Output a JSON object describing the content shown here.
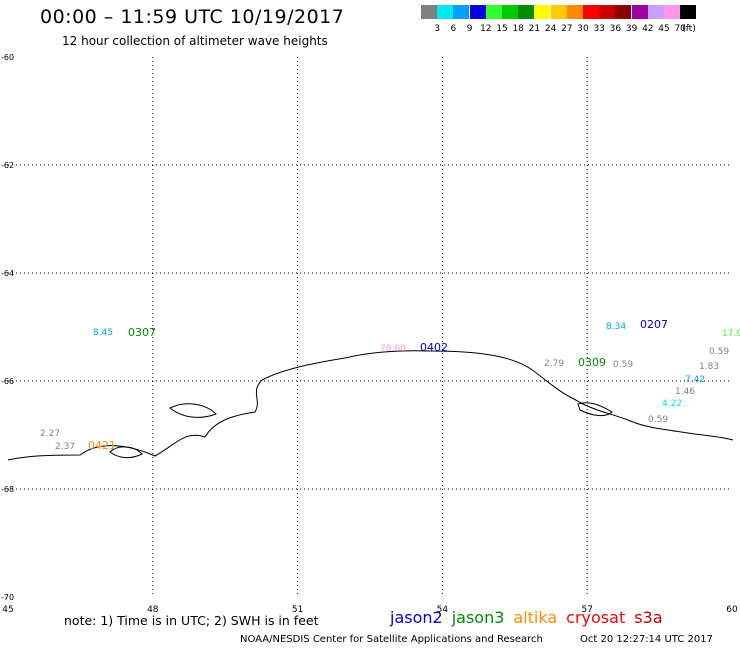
{
  "header": {
    "title": "00:00 – 11:59 UTC 10/19/2017",
    "subtitle": "12 hour collection of altimeter wave heights"
  },
  "color_scale": {
    "unit": "(ft)",
    "bins": [
      {
        "label": "3",
        "color": "#808080"
      },
      {
        "label": "6",
        "color": "#00e8e8"
      },
      {
        "label": "9",
        "color": "#00a0ff"
      },
      {
        "label": "12",
        "color": "#0000e0"
      },
      {
        "label": "15",
        "color": "#30ff30"
      },
      {
        "label": "18",
        "color": "#00c800"
      },
      {
        "label": "21",
        "color": "#008c00"
      },
      {
        "label": "24",
        "color": "#ffff00"
      },
      {
        "label": "27",
        "color": "#ffc800"
      },
      {
        "label": "30",
        "color": "#ff8c00"
      },
      {
        "label": "33",
        "color": "#ff0000"
      },
      {
        "label": "36",
        "color": "#c80000"
      },
      {
        "label": "39",
        "color": "#8c0000"
      },
      {
        "label": "42",
        "color": "#a000a0"
      },
      {
        "label": "45",
        "color": "#c8a0ff"
      },
      {
        "label": "70",
        "color": "#ff96e6"
      },
      {
        "label": "",
        "color": "#000000"
      }
    ]
  },
  "map": {
    "lon_range": [
      45,
      60
    ],
    "lat_range": [
      -70,
      -60
    ],
    "x_ticks": [
      "45",
      "48",
      "51",
      "54",
      "57",
      "60"
    ],
    "y_ticks": [
      "-60",
      "-62",
      "-64",
      "-66",
      "-68",
      "-70"
    ],
    "grid": "dotted",
    "swh_labels": [
      {
        "text": "8.45",
        "color": "#00a0ff"
      },
      {
        "text": "0307",
        "color": "#008c00"
      },
      {
        "text": "78.60",
        "color": "#ff96e6"
      },
      {
        "text": "0402",
        "color": "#0000e0"
      },
      {
        "text": "8.34",
        "color": "#00a0ff"
      },
      {
        "text": "0207",
        "color": "#0000e0"
      },
      {
        "text": "17.9",
        "color": "#30ff30"
      },
      {
        "text": "0.59",
        "color": "#808080"
      },
      {
        "text": "2.79",
        "color": "#808080"
      },
      {
        "text": "0309",
        "color": "#008c00"
      },
      {
        "text": "0.59",
        "color": "#808080"
      },
      {
        "text": "1.83",
        "color": "#808080"
      },
      {
        "text": "7.42",
        "color": "#00a0ff"
      },
      {
        "text": "1.46",
        "color": "#808080"
      },
      {
        "text": "4.22",
        "color": "#00e8e8"
      },
      {
        "text": "0.59",
        "color": "#808080"
      },
      {
        "text": "2.27",
        "color": "#808080"
      },
      {
        "text": "2.37",
        "color": "#808080"
      },
      {
        "text": "0421",
        "color": "#ff8c00"
      }
    ]
  },
  "footer": {
    "note": "note: 1) Time is in UTC; 2) SWH is in feet",
    "satellites": [
      {
        "name": "jason2",
        "color": "#0000e0"
      },
      {
        "name": "jason3",
        "color": "#008c00"
      },
      {
        "name": "altika",
        "color": "#ff8c00"
      },
      {
        "name": "cryosat",
        "color": "#ff0000"
      },
      {
        "name": "s3a",
        "color": "#c80000"
      }
    ],
    "credit": "NOAA/NESDIS Center for Satellite Applications and Research",
    "timestamp": "Oct 20 12:27:14 UTC 2017"
  }
}
